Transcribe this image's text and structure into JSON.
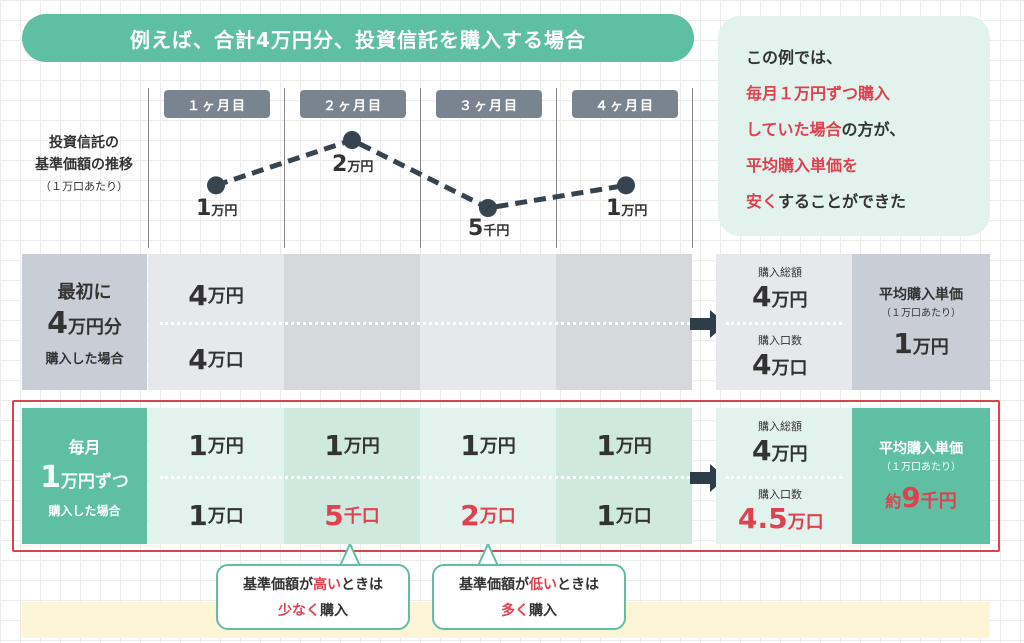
{
  "header": {
    "title": "例えば、合計4万円分、投資信託を購入する場合"
  },
  "summary": {
    "line1": "この例では、",
    "line2": "毎月１万円ずつ購入",
    "line3_red": "していた場合",
    "line3_rest": "の方が、",
    "line4": "平均購入単価を",
    "line5_red": "安く",
    "line5_rest": "することができた"
  },
  "months": [
    "１ヶ月目",
    "２ヶ月目",
    "３ヶ月目",
    "４ヶ月目"
  ],
  "trend": {
    "label_line1": "投資信託の",
    "label_line2": "基準価額の推移",
    "label_sub": "（１万口あたり）",
    "points": [
      {
        "num": "1",
        "unit": "万円",
        "value": 10000
      },
      {
        "num": "2",
        "unit": "万円",
        "value": 20000
      },
      {
        "num": "5",
        "unit": "千円",
        "value": 5000
      },
      {
        "num": "1",
        "unit": "万円",
        "value": 10000
      }
    ]
  },
  "lump_sum": {
    "label_line1": "最初に",
    "label_num": "4",
    "label_unit": "万円分",
    "label_line3": "購入した場合",
    "amount_num": "4",
    "amount_unit": "万円",
    "units_num": "4",
    "units_unit": "万口",
    "total_label": "購入総額",
    "total_num": "4",
    "total_unit": "万円",
    "count_label": "購入口数",
    "count_num": "4",
    "count_unit": "万口",
    "avg_label": "平均購入単価",
    "avg_sub": "（１万口あたり）",
    "avg_num": "1",
    "avg_unit": "万円"
  },
  "monthly": {
    "label_line1": "毎月",
    "label_num": "1",
    "label_unit": "万円ずつ",
    "label_line3": "購入した場合",
    "amounts": [
      {
        "num": "1",
        "unit": "万円"
      },
      {
        "num": "1",
        "unit": "万円"
      },
      {
        "num": "1",
        "unit": "万円"
      },
      {
        "num": "1",
        "unit": "万円"
      }
    ],
    "units": [
      {
        "num": "1",
        "unit": "万口"
      },
      {
        "num": "5",
        "unit": "千口"
      },
      {
        "num": "2",
        "unit": "万口"
      },
      {
        "num": "1",
        "unit": "万口"
      }
    ],
    "total_label": "購入総額",
    "total_num": "4",
    "total_unit": "万円",
    "count_label": "購入口数",
    "count_num": "4.5",
    "count_unit": "万口",
    "avg_label": "平均購入単価",
    "avg_sub": "（１万口あたり）",
    "avg_prefix": "約",
    "avg_num": "9",
    "avg_unit": "千円"
  },
  "callouts": [
    {
      "pre": "基準価額が",
      "red": "高い",
      "post": "ときは",
      "line2_red": "少なく",
      "line2_post": "購入"
    },
    {
      "pre": "基準価額が",
      "red": "低い",
      "post": "ときは",
      "line2_red": "多く",
      "line2_post": "購入"
    }
  ],
  "colors": {
    "teal": "#5fbfa3",
    "light_teal": "#e2f2ec",
    "gray": "#c9ced6",
    "red": "#e0414f",
    "label_gray": "#7a848e"
  }
}
